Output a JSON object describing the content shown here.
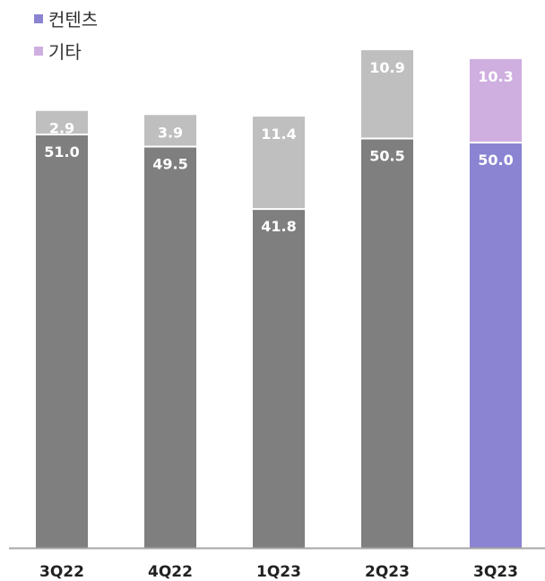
{
  "chart_data": {
    "type": "bar",
    "stacked": true,
    "categories": [
      "3Q22",
      "4Q22",
      "1Q23",
      "2Q23",
      "3Q23"
    ],
    "series": [
      {
        "name": "컨텐츠",
        "values": [
          51.0,
          49.5,
          41.8,
          50.5,
          50.0
        ],
        "labels": [
          "51.0",
          "49.5",
          "41.8",
          "50.5",
          "50.0"
        ]
      },
      {
        "name": "기타",
        "values": [
          2.9,
          3.9,
          11.4,
          10.9,
          10.3
        ],
        "labels": [
          "2.9",
          "3.9",
          "11.4",
          "10.9",
          "10.3"
        ]
      }
    ],
    "ylim": [
      0,
      64
    ],
    "grid": false,
    "legend_position": "top-left",
    "colors": {
      "series0": "#7f7f7f",
      "series1": "#bfbfbf",
      "highlight_series0": "#8a84d2",
      "highlight_series1": "#cfaee0"
    },
    "highlight_category": "3Q23"
  }
}
